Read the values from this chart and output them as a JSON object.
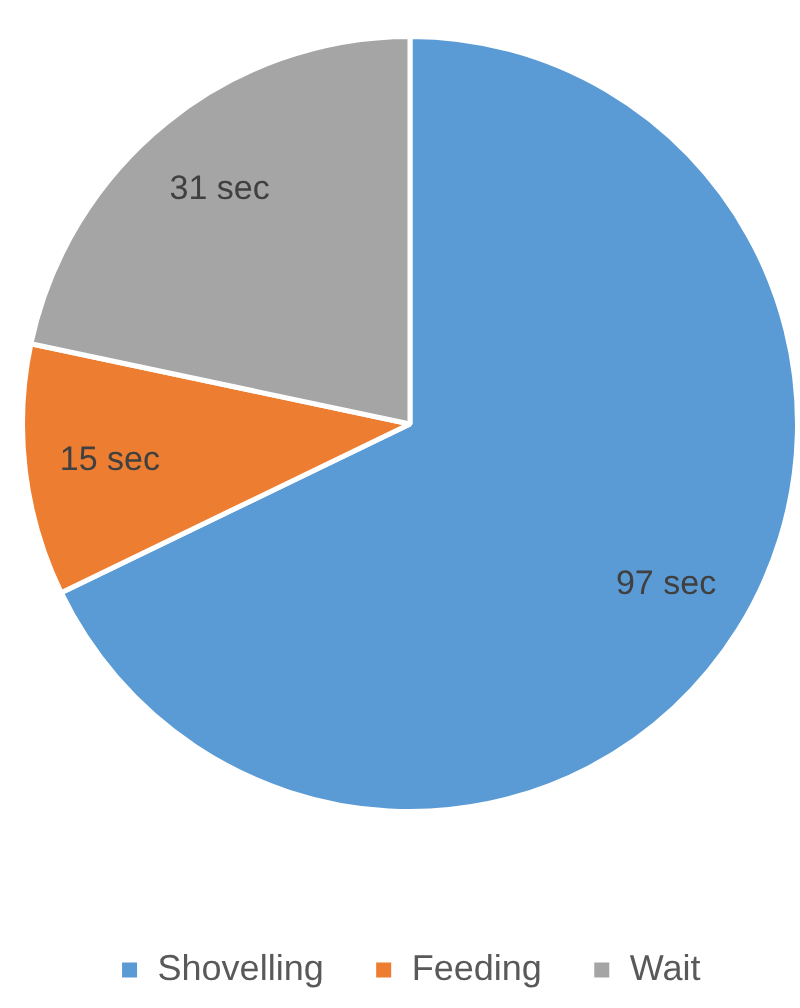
{
  "chart_data": {
    "type": "pie",
    "categories": [
      "Shovelling",
      "Feeding",
      "Wait"
    ],
    "values": [
      97,
      15,
      31
    ],
    "colors": [
      "#5b9bd5",
      "#ed7d31",
      "#a5a5a5"
    ],
    "value_labels": [
      "97 sec",
      "15 sec",
      "31 sec"
    ],
    "legend": "bottom"
  }
}
